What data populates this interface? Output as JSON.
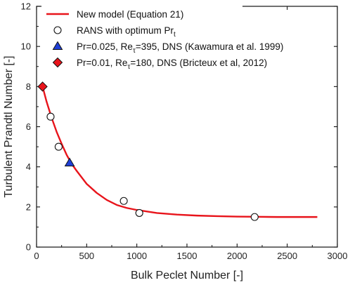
{
  "chart_data": {
    "type": "line",
    "title": "",
    "xlabel": "Bulk Peclet Number [-]",
    "ylabel": "Turbulent Prandtl Number [-]",
    "xlim": [
      0,
      3000
    ],
    "ylim": [
      0,
      12
    ],
    "xticks": [
      0,
      500,
      1000,
      1500,
      2000,
      2500,
      3000
    ],
    "yticks": [
      0,
      2,
      4,
      6,
      8,
      10,
      12
    ],
    "grid": false,
    "legend_position": "top-left",
    "legend": [
      {
        "label": "New model (Equation 21)",
        "main": "New model (Equation 21)",
        "sub": "",
        "tail": ""
      },
      {
        "label": "RANS with optimum Prt",
        "main": "RANS with optimum Pr",
        "sub": "t",
        "tail": ""
      },
      {
        "label": "Pr=0.025, Reτ=395, DNS (Kawamura et al. 1999)",
        "main": "Pr=0.025, Re",
        "sub": "τ",
        "tail": "=395, DNS (Kawamura et al. 1999)"
      },
      {
        "label": "Pr=0.01, Reτ=180, DNS (Bricteux et al, 2012)",
        "main": "Pr=0.01, Re",
        "sub": "τ",
        "tail": "=180, DNS (Bricteux et al, 2012)"
      }
    ],
    "series": [
      {
        "name": "New model (Equation 21)",
        "kind": "line",
        "color": "#e8141b",
        "x": [
          60,
          100,
          150,
          200,
          250,
          300,
          350,
          400,
          500,
          600,
          700,
          800,
          900,
          1000,
          1200,
          1400,
          1600,
          1800,
          2000,
          2200,
          2400,
          2600,
          2800
        ],
        "y": [
          8.0,
          7.25,
          6.45,
          5.75,
          5.15,
          4.6,
          4.15,
          3.8,
          3.15,
          2.7,
          2.35,
          2.1,
          1.95,
          1.85,
          1.7,
          1.62,
          1.57,
          1.54,
          1.52,
          1.51,
          1.5,
          1.5,
          1.5
        ]
      },
      {
        "name": "RANS with optimum Prt",
        "kind": "marker",
        "marker": "circle",
        "color": "#ffffff",
        "x": [
          140,
          220,
          870,
          1025,
          2175
        ],
        "y": [
          6.5,
          5.0,
          2.3,
          1.7,
          1.5
        ]
      },
      {
        "name": "Pr=0.025, Reτ=395, DNS (Kawamura et al. 1999)",
        "kind": "marker",
        "marker": "triangle",
        "color": "#1f3fd6",
        "x": [
          330
        ],
        "y": [
          4.2
        ]
      },
      {
        "name": "Pr=0.01, Reτ=180, DNS (Bricteux et al, 2012)",
        "kind": "marker",
        "marker": "diamond",
        "color": "#e8141b",
        "x": [
          60
        ],
        "y": [
          8.0
        ]
      }
    ]
  }
}
